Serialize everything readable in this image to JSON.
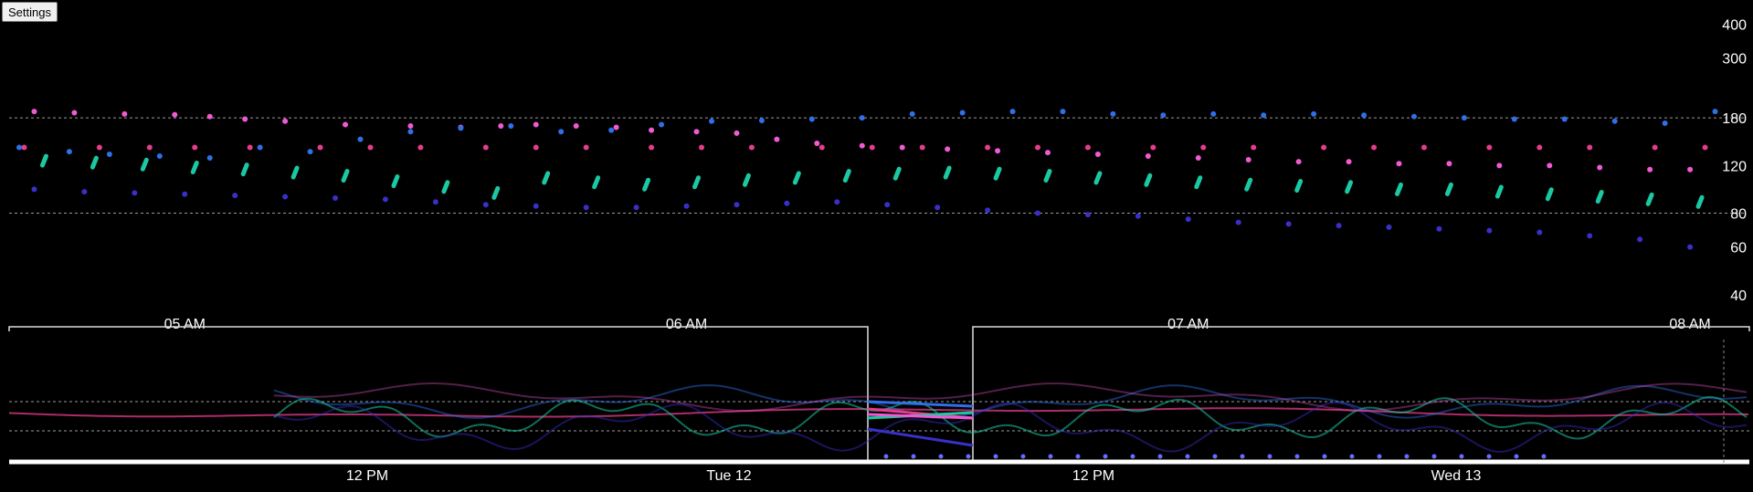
{
  "toolbar": {
    "settings_label": "Settings"
  },
  "colors": {
    "background": "#000000",
    "pink": "#e63c8c",
    "magenta": "#f05ad2",
    "blue": "#2f6fe8",
    "teal": "#1ac9a3",
    "indigo": "#3a2fc8",
    "grid": "#9a9a9a"
  },
  "chart_data": [
    {
      "type": "scatter",
      "y_ticks": [
        400,
        300,
        180,
        120,
        80,
        60,
        40
      ],
      "y_threshold_lines": [
        180,
        80
      ],
      "ylim": [
        35,
        420
      ],
      "y_scale": "log",
      "x_ticks": [
        "05 AM",
        "06 AM",
        "07 AM",
        "08 AM"
      ],
      "x_range_hours": [
        4.65,
        8.1
      ],
      "grid": "dashed threshold lines only",
      "series": [
        {
          "color_key": "pink",
          "times": [
            4.68,
            4.83,
            4.93,
            5.02,
            5.13,
            5.27,
            5.37,
            5.47,
            5.6,
            5.7,
            5.8,
            5.93,
            6.03,
            6.13,
            6.27,
            6.37,
            6.47,
            6.6,
            6.7,
            6.8,
            6.93,
            7.03,
            7.13,
            7.27,
            7.37,
            7.47,
            7.6,
            7.7,
            7.8,
            7.93,
            8.03
          ],
          "value": 140
        },
        {
          "color_key": "magenta",
          "times": [
            4.7,
            4.78,
            4.88,
            4.98,
            5.05,
            5.12,
            5.2,
            5.32,
            5.45,
            5.55,
            5.63,
            5.7,
            5.78,
            5.86,
            5.93,
            6.02,
            6.1,
            6.18,
            6.26,
            6.35,
            6.43,
            6.52,
            6.62,
            6.72,
            6.82,
            6.92,
            7.02,
            7.12,
            7.22,
            7.32,
            7.42,
            7.52,
            7.62,
            7.72,
            7.82,
            7.92,
            8.0
          ],
          "values": [
            190,
            188,
            186,
            185,
            182,
            178,
            175,
            170,
            168,
            166,
            168,
            170,
            168,
            166,
            162,
            160,
            158,
            150,
            145,
            142,
            140,
            138,
            136,
            134,
            132,
            130,
            128,
            126,
            124,
            124,
            122,
            122,
            120,
            120,
            118,
            116,
            116
          ]
        },
        {
          "color_key": "blue",
          "times": [
            4.67,
            4.77,
            4.85,
            4.95,
            5.05,
            5.15,
            5.25,
            5.35,
            5.45,
            5.55,
            5.65,
            5.75,
            5.85,
            5.95,
            6.05,
            6.15,
            6.25,
            6.35,
            6.45,
            6.55,
            6.65,
            6.75,
            6.85,
            6.95,
            7.05,
            7.15,
            7.25,
            7.35,
            7.45,
            7.55,
            7.65,
            7.75,
            7.85,
            7.95,
            8.05
          ],
          "values": [
            140,
            135,
            132,
            130,
            128,
            140,
            135,
            150,
            160,
            165,
            168,
            160,
            162,
            170,
            175,
            176,
            178,
            180,
            186,
            188,
            190,
            190,
            186,
            184,
            186,
            184,
            186,
            184,
            182,
            180,
            178,
            178,
            175,
            172,
            190
          ]
        },
        {
          "color_key": "teal",
          "times": [
            4.72,
            4.82,
            4.92,
            5.02,
            5.12,
            5.22,
            5.32,
            5.42,
            5.52,
            5.62,
            5.72,
            5.82,
            5.92,
            6.02,
            6.12,
            6.22,
            6.32,
            6.42,
            6.52,
            6.62,
            6.72,
            6.82,
            6.92,
            7.02,
            7.12,
            7.22,
            7.32,
            7.42,
            7.52,
            7.62,
            7.72,
            7.82,
            7.92,
            8.02
          ],
          "values": [
            125,
            123,
            121,
            118,
            116,
            113,
            110,
            105,
            100,
            95,
            108,
            104,
            102,
            104,
            106,
            108,
            110,
            112,
            113,
            112,
            110,
            108,
            106,
            104,
            102,
            101,
            100,
            98,
            98,
            96,
            94,
            92,
            90,
            88
          ]
        },
        {
          "color_key": "indigo",
          "times": [
            4.7,
            4.8,
            4.9,
            5.0,
            5.1,
            5.2,
            5.3,
            5.4,
            5.5,
            5.6,
            5.7,
            5.8,
            5.9,
            6.0,
            6.1,
            6.2,
            6.3,
            6.4,
            6.5,
            6.6,
            6.7,
            6.8,
            6.9,
            7.0,
            7.1,
            7.2,
            7.3,
            7.4,
            7.5,
            7.6,
            7.7,
            7.8,
            7.9,
            8.0
          ],
          "values": [
            98,
            96,
            95,
            94,
            93,
            92,
            91,
            90,
            88,
            86,
            85,
            84,
            84,
            85,
            86,
            87,
            88,
            86,
            84,
            82,
            80,
            79,
            78,
            76,
            74,
            73,
            72,
            71,
            70,
            69,
            68,
            66,
            64,
            60
          ]
        }
      ]
    },
    {
      "type": "line",
      "role": "overview-navigator",
      "x_ticks": [
        "12 PM",
        "Tue 12",
        "12 PM",
        "Wed 13"
      ]
    }
  ]
}
